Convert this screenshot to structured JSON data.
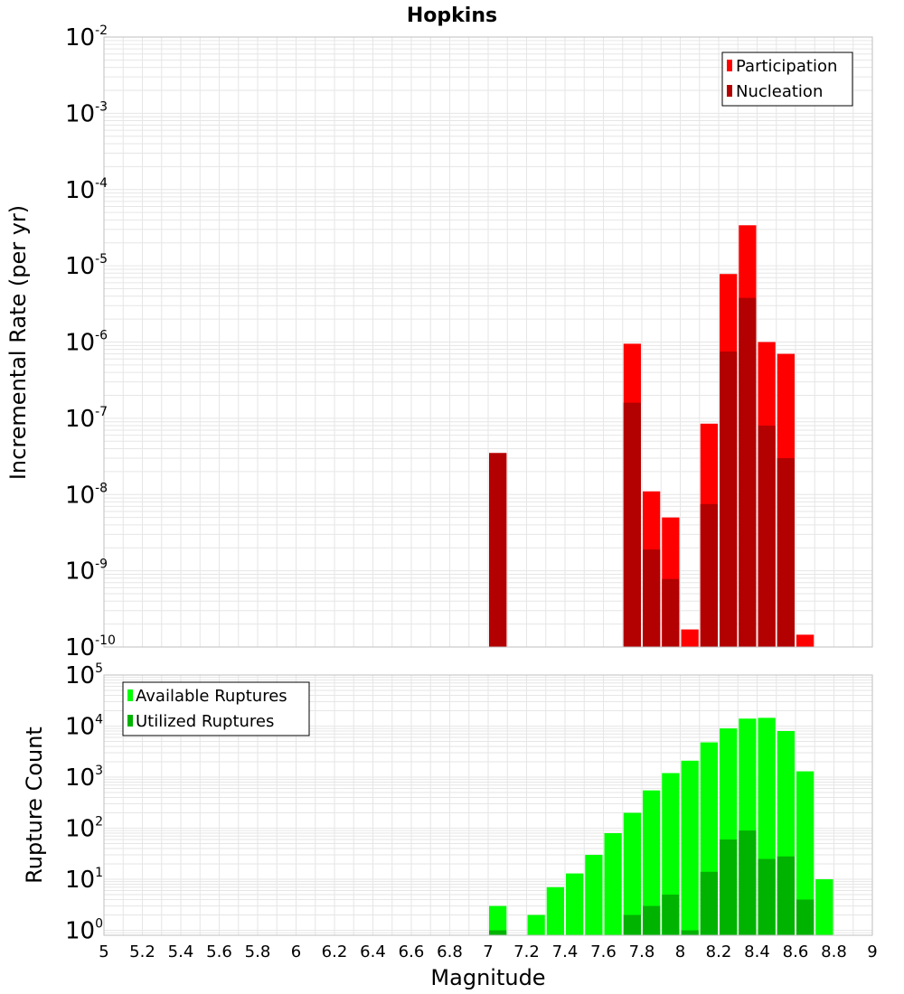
{
  "title": "Hopkins",
  "xlabel": "Magnitude",
  "x_ticks": [
    "5",
    "5.2",
    "5.4",
    "5.6",
    "5.8",
    "6",
    "6.2",
    "6.4",
    "6.6",
    "6.8",
    "7",
    "7.2",
    "7.4",
    "7.6",
    "7.8",
    "8",
    "8.2",
    "8.4",
    "8.6",
    "8.8",
    "9"
  ],
  "colors": {
    "participation": "#ff0000",
    "nucleation": "#b30000",
    "available": "#00ff00",
    "utilized": "#00b300",
    "grid": "#e6e6e6",
    "frame": "#bfbfbf"
  },
  "chart_data": [
    {
      "type": "bar",
      "title": "Hopkins",
      "xlabel": "Magnitude",
      "ylabel": "Incremental Rate (per yr)",
      "yscale": "log",
      "xlim": [
        5,
        9
      ],
      "ylim": [
        1e-10,
        0.01
      ],
      "y_ticks": [
        {
          "base": "10",
          "exp": "-10"
        },
        {
          "base": "10",
          "exp": "-9"
        },
        {
          "base": "10",
          "exp": "-8"
        },
        {
          "base": "10",
          "exp": "-7"
        },
        {
          "base": "10",
          "exp": "-6"
        },
        {
          "base": "10",
          "exp": "-5"
        },
        {
          "base": "10",
          "exp": "-4"
        },
        {
          "base": "10",
          "exp": "-3"
        },
        {
          "base": "10",
          "exp": "-2"
        }
      ],
      "legend": [
        "Participation",
        "Nucleation"
      ],
      "legend_position": "top-right",
      "bar_width": 0.1,
      "series": [
        {
          "name": "Participation",
          "x": [
            7.05,
            7.75,
            7.85,
            7.95,
            8.05,
            8.15,
            8.25,
            8.35,
            8.45,
            8.55,
            8.65
          ],
          "values": [
            3.5e-08,
            9.5e-07,
            1.1e-08,
            5e-09,
            1.7e-10,
            8.5e-08,
            7.8e-06,
            3.4e-05,
            1e-06,
            7e-07,
            1.45e-10
          ]
        },
        {
          "name": "Nucleation",
          "x": [
            7.05,
            7.75,
            7.85,
            7.95,
            8.15,
            8.25,
            8.35,
            8.45,
            8.55
          ],
          "values": [
            3.5e-08,
            1.6e-07,
            1.9e-09,
            7.8e-10,
            7.5e-09,
            7.5e-07,
            3.8e-06,
            8e-08,
            3e-08
          ]
        }
      ]
    },
    {
      "type": "bar",
      "xlabel": "Magnitude",
      "ylabel": "Rupture Count",
      "yscale": "log",
      "xlim": [
        5,
        9
      ],
      "ylim": [
        0.8,
        100000.0
      ],
      "y_ticks": [
        {
          "base": "10",
          "exp": "0"
        },
        {
          "base": "10",
          "exp": "1"
        },
        {
          "base": "10",
          "exp": "2"
        },
        {
          "base": "10",
          "exp": "3"
        },
        {
          "base": "10",
          "exp": "4"
        },
        {
          "base": "10",
          "exp": "5"
        }
      ],
      "legend": [
        "Available Ruptures",
        "Utilized Ruptures"
      ],
      "legend_position": "top-left",
      "bar_width": 0.1,
      "series": [
        {
          "name": "Available Ruptures",
          "x": [
            7.05,
            7.25,
            7.35,
            7.45,
            7.55,
            7.65,
            7.75,
            7.85,
            7.95,
            8.05,
            8.15,
            8.25,
            8.35,
            8.45,
            8.55,
            8.65,
            8.75
          ],
          "values": [
            3,
            2,
            7,
            13,
            30,
            80,
            200,
            550,
            1200,
            2100,
            4800,
            9000,
            14000,
            14500,
            8000,
            1300,
            10
          ]
        },
        {
          "name": "Utilized Ruptures",
          "x": [
            7.05,
            7.75,
            7.85,
            7.95,
            8.05,
            8.15,
            8.25,
            8.35,
            8.45,
            8.55,
            8.65
          ],
          "values": [
            1,
            2,
            3,
            5,
            1,
            14,
            60,
            90,
            25,
            28,
            4
          ]
        }
      ]
    }
  ]
}
